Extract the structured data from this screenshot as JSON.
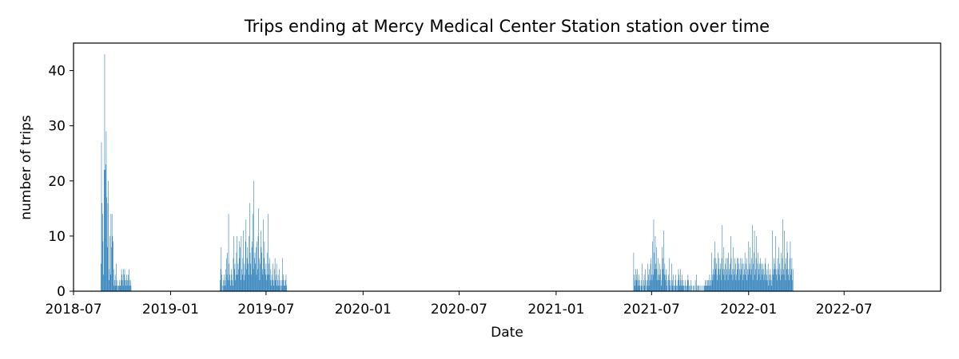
{
  "chart_data": {
    "type": "bar",
    "title": "Trips ending at Mercy Medical Center Station station over time",
    "xlabel": "Date",
    "ylabel": "number of trips",
    "xlim": [
      "2018-07-01",
      "2022-12-31"
    ],
    "ylim": [
      0,
      45
    ],
    "grid": false,
    "bar_color": "#1f77b4",
    "x_ticks": [
      "2018-07",
      "2019-01",
      "2019-07",
      "2020-01",
      "2020-07",
      "2021-01",
      "2021-07",
      "2022-01",
      "2022-07"
    ],
    "y_ticks": [
      0,
      10,
      20,
      30,
      40
    ],
    "segments": [
      {
        "start": "2018-08-22",
        "values": [
          5,
          27,
          16,
          14,
          9,
          3,
          22,
          43,
          22,
          23,
          29,
          17,
          8,
          16,
          20,
          2,
          4,
          10,
          3,
          14,
          8,
          14,
          10,
          9,
          4,
          1,
          2,
          3,
          1,
          5,
          2,
          1,
          0,
          1,
          1,
          2,
          1,
          1,
          2,
          4,
          3,
          2,
          1,
          4,
          3,
          4,
          2,
          1,
          2,
          3,
          2,
          1,
          3,
          4,
          2,
          1,
          2,
          1
        ]
      },
      {
        "start": "2019-04-05",
        "values": [
          2,
          4,
          8,
          3,
          1,
          0,
          2,
          1,
          3,
          2,
          1,
          4,
          6,
          3,
          7,
          2,
          14,
          5,
          3,
          2,
          1,
          4,
          3,
          2,
          1,
          6,
          10,
          4,
          5,
          2,
          3,
          7,
          10,
          3,
          5,
          4,
          9,
          6,
          8,
          2,
          10,
          4,
          3,
          6,
          11,
          2,
          5,
          3,
          9,
          13,
          4,
          6,
          8,
          5,
          3,
          10,
          16,
          7,
          5,
          3,
          8,
          9,
          14,
          4,
          20,
          6,
          7,
          5,
          8,
          3,
          9,
          4,
          10,
          15,
          6,
          2,
          5,
          11,
          8,
          7,
          4,
          3,
          13,
          6,
          9,
          4,
          3,
          5,
          2,
          7,
          3,
          14,
          5,
          3,
          6,
          2,
          4,
          1,
          3,
          2,
          5,
          2,
          1,
          4,
          6,
          2,
          3,
          5,
          1,
          2,
          3,
          1,
          4,
          2,
          1,
          0,
          2,
          1,
          6,
          2,
          3,
          1,
          2,
          1,
          2,
          3,
          1
        ]
      },
      {
        "start": "2021-05-28",
        "values": [
          7,
          3,
          1,
          2,
          4,
          2,
          3,
          4,
          1,
          2,
          3,
          2,
          1,
          0,
          1,
          2,
          5,
          1,
          0,
          2,
          3,
          1,
          4,
          2,
          0,
          1,
          2,
          5,
          3,
          1,
          4,
          2,
          5,
          6,
          3,
          2,
          9,
          3,
          13,
          7,
          4,
          10,
          5,
          8,
          4,
          2,
          6,
          3,
          2,
          5,
          3,
          4,
          1,
          2,
          8,
          6,
          4,
          11,
          3,
          5,
          2,
          3,
          4,
          1,
          2,
          0,
          3,
          2,
          6,
          1,
          2,
          0,
          5,
          1,
          2,
          3,
          1,
          0,
          1,
          2,
          3,
          1,
          0,
          1,
          2,
          4,
          3,
          1,
          2,
          4,
          1,
          2,
          3,
          1,
          2,
          1,
          0,
          1,
          2,
          1,
          0,
          1,
          2,
          3,
          2,
          1,
          0,
          1,
          0,
          2,
          1,
          0,
          0,
          1,
          0,
          1,
          0,
          2,
          0,
          3,
          1,
          0,
          1,
          0,
          1,
          0,
          1,
          0,
          0,
          1,
          0,
          0,
          1,
          0,
          1,
          1,
          2,
          1,
          2,
          1,
          2,
          1,
          2,
          1,
          3,
          2,
          1,
          2,
          7,
          3,
          2,
          4,
          3,
          6,
          9,
          4,
          6,
          5,
          3,
          2,
          7,
          4,
          6,
          3,
          4,
          5,
          2,
          6,
          12,
          4,
          3,
          8,
          4,
          2,
          5,
          6,
          3,
          4,
          6,
          2,
          7,
          4,
          3,
          5,
          10,
          6,
          3,
          4,
          2,
          8,
          4,
          3,
          6,
          5,
          2,
          3,
          6,
          4,
          6,
          5,
          2,
          4,
          6,
          3,
          4,
          6,
          5,
          2,
          3,
          5,
          4,
          7,
          3,
          5,
          6,
          2,
          4,
          3,
          9,
          4,
          5,
          8,
          3,
          4,
          6,
          12,
          2,
          5,
          7,
          11,
          3,
          4,
          6,
          10,
          2,
          5,
          7,
          4,
          3,
          5,
          6,
          2,
          5,
          4,
          3,
          5,
          4,
          2,
          3,
          5,
          6,
          2,
          3,
          4,
          2,
          5,
          1,
          3,
          2,
          4,
          3,
          1,
          2,
          11,
          4,
          3,
          6,
          5,
          4,
          10,
          4,
          3,
          2,
          6,
          4,
          8,
          3,
          5,
          2,
          4,
          7,
          3,
          6,
          13,
          4,
          3,
          11,
          5,
          2,
          6,
          4,
          9,
          7,
          3,
          4,
          2,
          6,
          9,
          3,
          4,
          6,
          2,
          4
        ]
      }
    ]
  }
}
